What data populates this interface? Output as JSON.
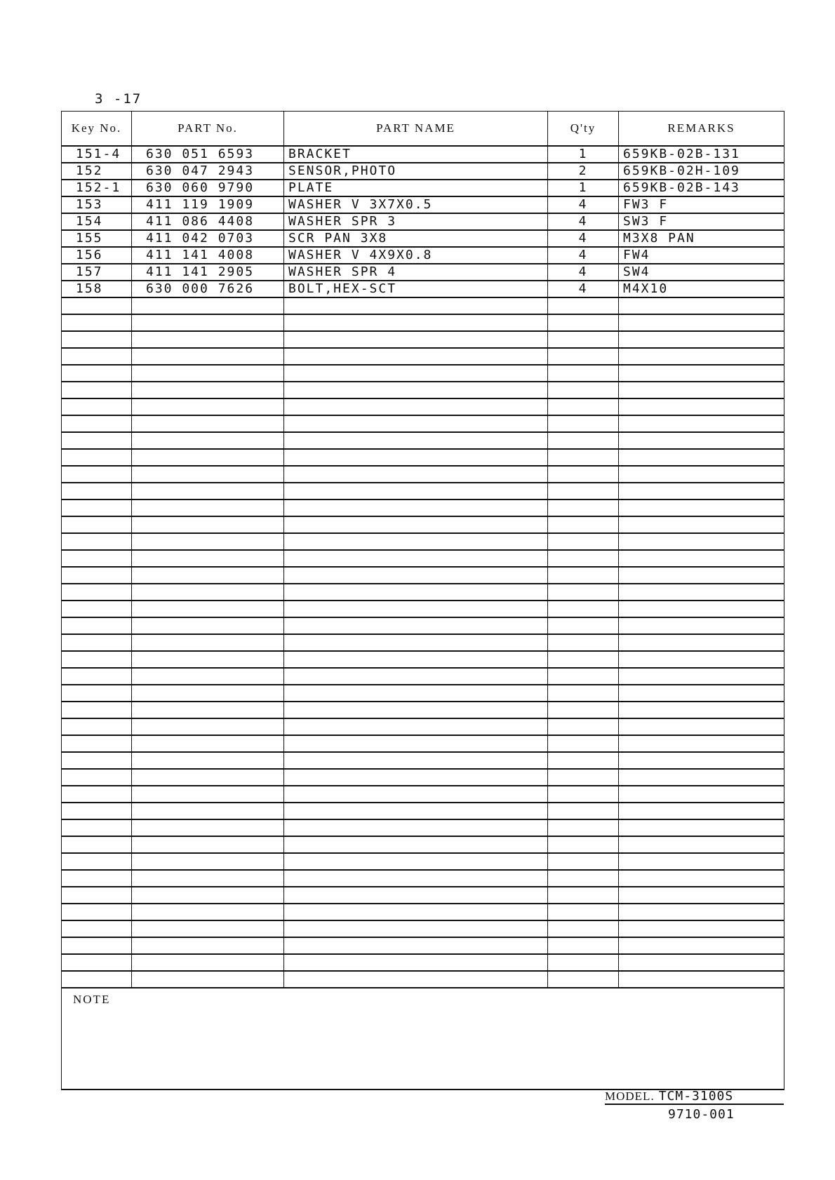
{
  "page_number": "3 -17",
  "headers": {
    "key": "Key No.",
    "part_no": "PART No.",
    "part_name": "PART NAME",
    "qty": "Q'ty",
    "remarks": "REMARKS"
  },
  "rows": [
    {
      "key": "151-4",
      "part_no": "630 051 6593",
      "part_name": "BRACKET",
      "qty": "1",
      "remarks": "659KB-02B-131"
    },
    {
      "key": "152",
      "part_no": "630 047 2943",
      "part_name": "SENSOR,PHOTO",
      "qty": "2",
      "remarks": "659KB-02H-109"
    },
    {
      "key": "152-1",
      "part_no": "630 060 9790",
      "part_name": "PLATE",
      "qty": "1",
      "remarks": "659KB-02B-143"
    },
    {
      "key": "153",
      "part_no": "411 119 1909",
      "part_name": "WASHER V 3X7X0.5",
      "qty": "4",
      "remarks": "FW3 F"
    },
    {
      "key": "154",
      "part_no": "411 086 4408",
      "part_name": "WASHER SPR 3",
      "qty": "4",
      "remarks": "SW3 F"
    },
    {
      "key": "155",
      "part_no": "411 042 0703",
      "part_name": "SCR PAN 3X8",
      "qty": "4",
      "remarks": "M3X8 PAN"
    },
    {
      "key": "156",
      "part_no": "411 141 4008",
      "part_name": "WASHER V 4X9X0.8",
      "qty": "4",
      "remarks": "FW4"
    },
    {
      "key": "157",
      "part_no": "411 141 2905",
      "part_name": "WASHER SPR 4",
      "qty": "4",
      "remarks": "SW4"
    },
    {
      "key": "158",
      "part_no": "630 000 7626",
      "part_name": "BOLT,HEX-SCT",
      "qty": "4",
      "remarks": "M4X10"
    }
  ],
  "note_label": "NOTE",
  "model_label": "MODEL.",
  "model_value": "TCM-3100S",
  "revision": "9710-001"
}
